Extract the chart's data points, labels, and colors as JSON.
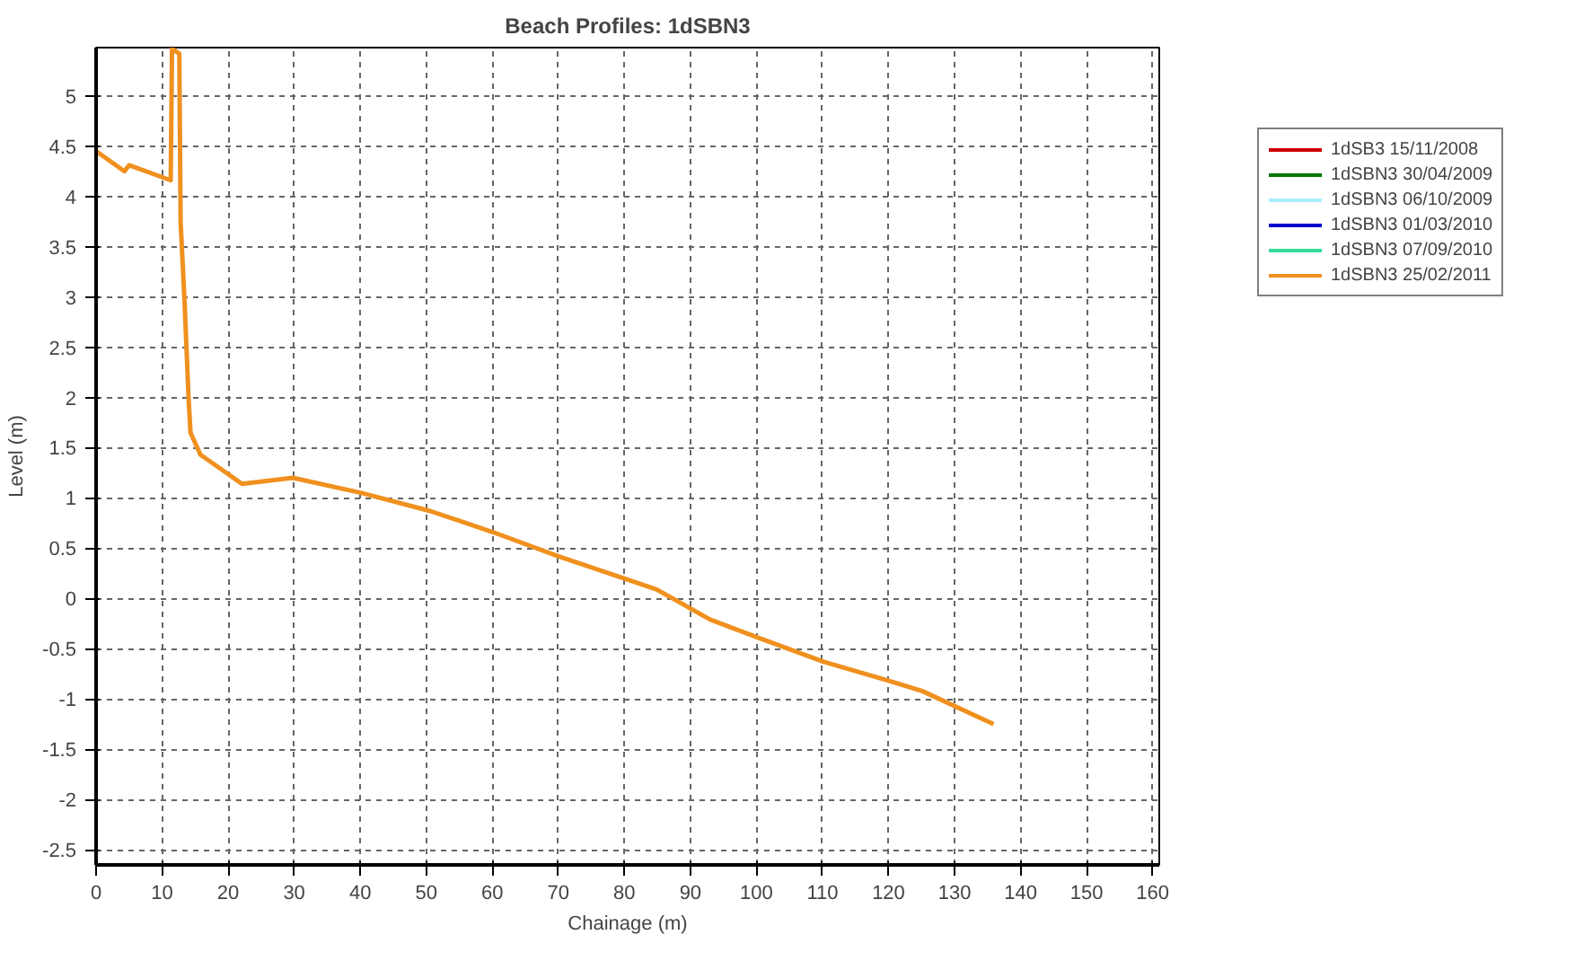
{
  "chart_data": {
    "type": "line",
    "title": "Beach Profiles: 1dSBN3",
    "xlabel": "Chainage (m)",
    "ylabel": "Level (m)",
    "xlim": [
      0,
      161
    ],
    "ylim": [
      -2.65,
      5.48
    ],
    "xticks": [
      0,
      10,
      20,
      30,
      40,
      50,
      60,
      70,
      80,
      90,
      100,
      110,
      120,
      130,
      140,
      150,
      160
    ],
    "yticks": [
      -2.5,
      -2,
      -1.5,
      -1,
      -0.5,
      0,
      0.5,
      1,
      1.5,
      2,
      2.5,
      3,
      3.5,
      4,
      4.5,
      5
    ],
    "grid": true,
    "legend": "top right",
    "line_style": "solid",
    "marker": "none",
    "series": [
      {
        "name": "1dSB3 15/11/2008",
        "color": "#cc0000"
      },
      {
        "name": "1dSBN3 30/04/2009",
        "color": "#007700"
      },
      {
        "name": "1dSBN3 06/10/2009",
        "color": "#aaeeff"
      },
      {
        "name": "1dSBN3 01/03/2010",
        "color": "#0000cc"
      },
      {
        "name": "1dSBN3 07/09/2010",
        "color": "#33dd99"
      },
      {
        "name": "1dSBN3 25/02/2011",
        "color": "#f0901e",
        "x": [
          0,
          4.3,
          5.0,
          11.3,
          11.5,
          12.6,
          12.8,
          13.4,
          14.0,
          14.3,
          15.8,
          22.1,
          29.8,
          40.2,
          50.6,
          60.1,
          70,
          80.4,
          84.9,
          93,
          100.3,
          110.2,
          120.1,
          125.1,
          135.9
        ],
        "values": [
          4.45,
          4.25,
          4.31,
          4.16,
          5.47,
          5.42,
          3.75,
          2.95,
          2.0,
          1.65,
          1.43,
          1.14,
          1.2,
          1.05,
          0.87,
          0.66,
          0.42,
          0.19,
          0.09,
          -0.21,
          -0.39,
          -0.63,
          -0.82,
          -0.92,
          -1.25
        ]
      }
    ]
  }
}
